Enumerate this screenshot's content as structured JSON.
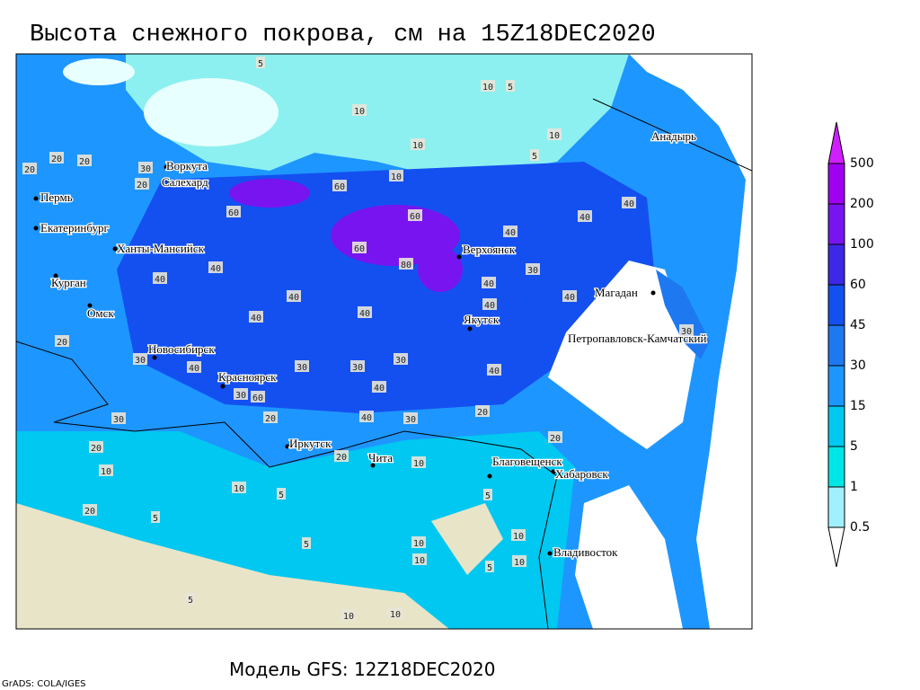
{
  "title": "Высота снежного покрова, см на 15Z18DEC2020",
  "footer": "Модель GFS: 12Z18DEC2020",
  "credit": "GrADS: COLA/IGES",
  "legend": {
    "levels": [
      0.5,
      1,
      5,
      15,
      30,
      45,
      60,
      100,
      200,
      500
    ],
    "colors": [
      "#ffffff",
      "#a0f0ff",
      "#00e6e6",
      "#00c8f0",
      "#1e96ff",
      "#1e78f0",
      "#1450f0",
      "#3c28e6",
      "#7814f0",
      "#a000f0",
      "#d020ff"
    ]
  },
  "cities": [
    "Воркута",
    "Салехард",
    "Пермь",
    "Екатеринбург",
    "Ханты-Мансийск",
    "Курган",
    "Омск",
    "Новосибирск",
    "Красноярск",
    "Иркутск",
    "Чита",
    "Верхоянск",
    "Якутск",
    "Магадан",
    "Анадырь",
    "Петропавловск-Камчатский",
    "Благовещенск",
    "Хабаровск",
    "Владивосток"
  ],
  "contour_labels": [
    5,
    10,
    5,
    10,
    10,
    10,
    10,
    5,
    20,
    20,
    20,
    30,
    20,
    60,
    60,
    60,
    60,
    80,
    40,
    40,
    40,
    40,
    40,
    40,
    40,
    30,
    40,
    40,
    40,
    40,
    20,
    30,
    40,
    30,
    60,
    20,
    30,
    30,
    40,
    30,
    40,
    30,
    40,
    20,
    20,
    10,
    20,
    10,
    5,
    5,
    20,
    5,
    5,
    10,
    10,
    10,
    5,
    10,
    5,
    10,
    10,
    30,
    20,
    10,
    30
  ]
}
